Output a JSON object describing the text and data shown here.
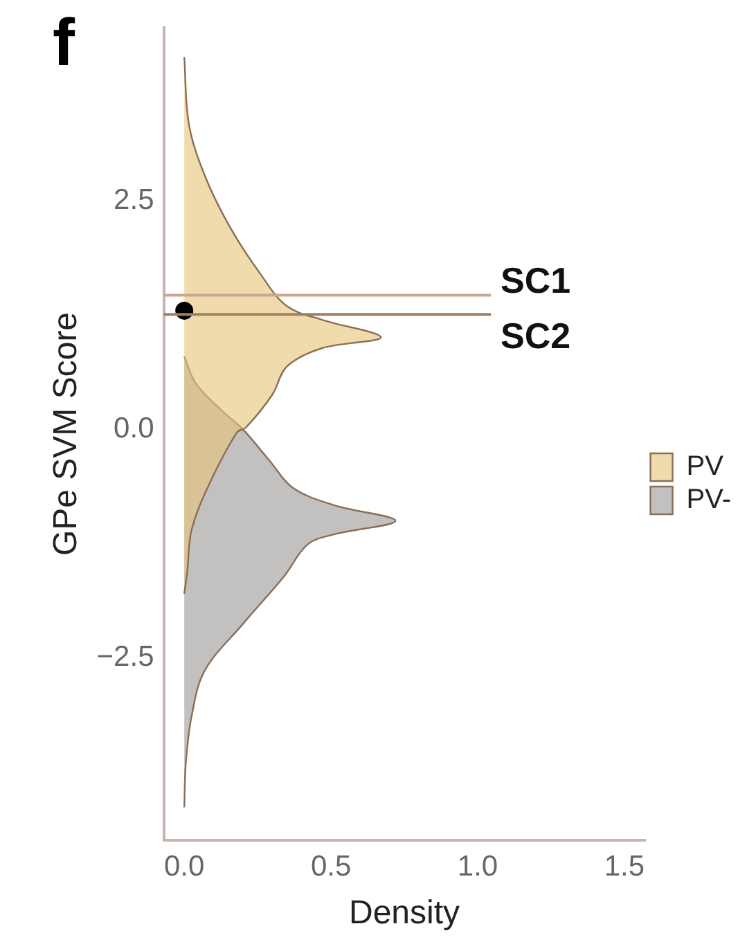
{
  "chart_data": {
    "type": "area",
    "orientation": "horizontal",
    "title": "f",
    "xlabel": "Density",
    "ylabel": "GPe SVM Score",
    "xlim": [
      -0.07,
      1.57
    ],
    "xticks": [
      {
        "value": 0,
        "label": "0.0"
      },
      0.5,
      {
        "value": 1,
        "label": "1.0"
      },
      1.5
    ],
    "ylim": [
      -4.5,
      4.4
    ],
    "yticks": [
      {
        "value": -2.5,
        "label": "−2.5"
      },
      {
        "value": 0,
        "label": "0.0"
      },
      2.5
    ],
    "legend": "right",
    "grid": false,
    "series": [
      {
        "name": "PV",
        "color": "#e6c57a",
        "values": [
          0,
          0.016,
          0.07,
          0.155,
          0.26,
          0.35,
          0.47,
          0.67,
          0.47,
          0.35,
          0.3,
          0.21,
          0.18,
          0.085,
          0.025,
          0.01,
          0
        ],
        "x": [
          4.08,
          3.34,
          2.78,
          2.22,
          1.7,
          1.35,
          1.2,
          1.01,
          0.89,
          0.69,
          0.38,
          0.02,
          -0.03,
          -0.6,
          -1.1,
          -1.56,
          -1.8
        ]
      },
      {
        "name": "PV-",
        "color": "#9e9a9a",
        "values": [
          0,
          0.04,
          0.13,
          0.2,
          0.29,
          0.37,
          0.51,
          0.72,
          0.51,
          0.42,
          0.34,
          0.2,
          0.07,
          0.025,
          0.005,
          0
        ],
        "x": [
          0.8,
          0.5,
          0.2,
          0,
          -0.34,
          -0.64,
          -0.83,
          -1,
          -1.15,
          -1.26,
          -1.61,
          -2.13,
          -2.64,
          -3.14,
          -3.67,
          -4.14
        ]
      },
      {
        "type": "scatter",
        "color": "#000000",
        "values": [
          0
        ],
        "x": [
          1.3
        ],
        "marker": "circle"
      }
    ],
    "ref_lines": [
      {
        "axis": "y",
        "value": 1.47,
        "label": "SC1",
        "color": "#c8a890"
      },
      {
        "axis": "y",
        "value": 1.26,
        "label": "SC2",
        "color": "#a08060"
      }
    ]
  }
}
